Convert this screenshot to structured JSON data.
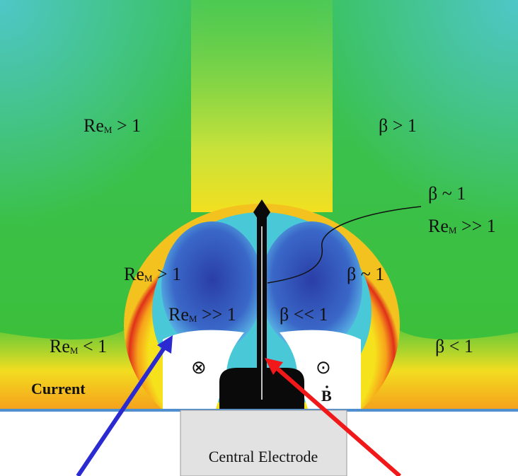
{
  "re_labels": [
    {
      "base": "Re",
      "sub": "M",
      "rest": " > 1"
    },
    {
      "base": "Re",
      "sub": "M",
      "rest": " >> 1"
    },
    {
      "base": "Re",
      "sub": "M",
      "rest": " > 1"
    },
    {
      "base": "Re",
      "sub": "M",
      "rest": " >> 1"
    },
    {
      "base": "Re",
      "sub": "M",
      "rest": " < 1"
    }
  ],
  "beta_labels": [
    "β > 1",
    "β ~ 1",
    "β ~ 1",
    "β << 1",
    "β < 1"
  ],
  "symbols": [
    "⊗",
    "⊙"
  ],
  "field_label": "B",
  "current_label": "Current",
  "electrode_label": "Central Electrode"
}
